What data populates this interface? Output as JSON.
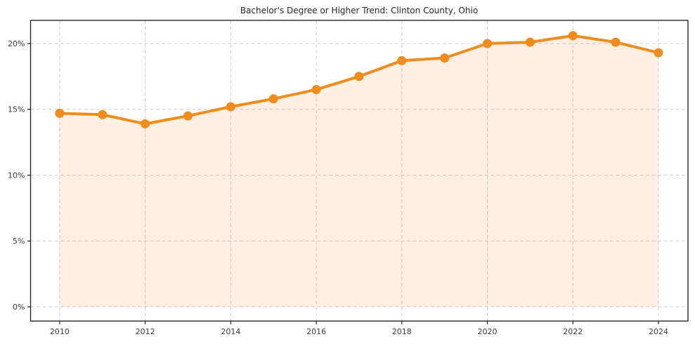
{
  "page": {
    "background_color": "#ffffff"
  },
  "chart_data": {
    "type": "line",
    "title": "Bachelor's Degree or Higher Trend: Clinton County, Ohio",
    "xlabel": "",
    "ylabel": "",
    "x": [
      2010,
      2011,
      2012,
      2013,
      2014,
      2015,
      2016,
      2017,
      2018,
      2019,
      2020,
      2021,
      2022,
      2023,
      2024
    ],
    "values": [
      14.7,
      14.6,
      13.9,
      14.5,
      15.2,
      15.8,
      16.5,
      17.5,
      18.7,
      18.9,
      20.0,
      20.1,
      20.6,
      20.1,
      19.3
    ],
    "series_name": "Bachelor's Degree or Higher (%)",
    "x_ticks": [
      2010,
      2012,
      2014,
      2016,
      2018,
      2020,
      2022,
      2024
    ],
    "x_tick_labels": [
      "2010",
      "2012",
      "2014",
      "2016",
      "2018",
      "2020",
      "2022",
      "2024"
    ],
    "y_ticks": [
      0,
      5,
      10,
      15,
      20
    ],
    "y_tick_labels": [
      "0%",
      "5%",
      "10%",
      "15%",
      "20%"
    ],
    "xlim": [
      2009.32,
      2024.69
    ],
    "ylim": [
      -1.08,
      21.76
    ],
    "grid": true,
    "legend": false,
    "fill_to_zero": true,
    "colors": {
      "line": "#f08c1e",
      "marker": "#f08c1e",
      "fill": "#f08c1e",
      "grid": "#cccccc",
      "axis": "#1a1a1a",
      "tick_label": "#3a3a3a",
      "title": "#262626"
    },
    "fill_opacity": 0.13,
    "line_width": 4,
    "marker_radius": 6.5
  }
}
